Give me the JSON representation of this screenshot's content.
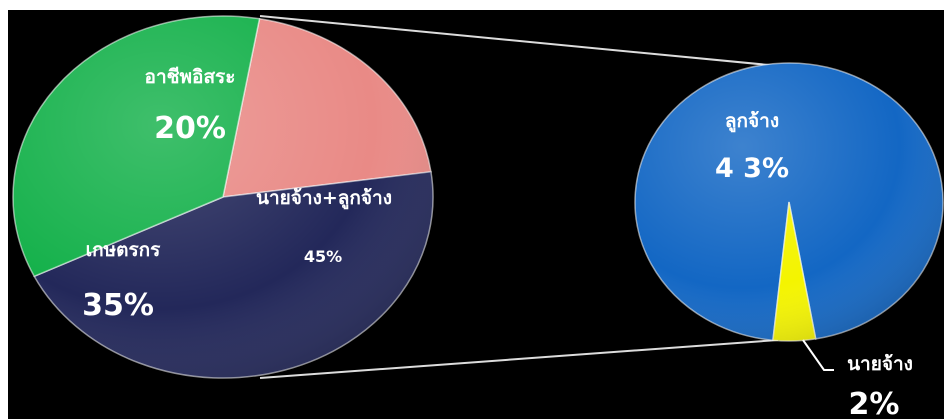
{
  "chart_data": [
    {
      "type": "pie",
      "slices": [
        {
          "label": "อาชีพอิสระ",
          "value": 20,
          "value_label": "20%",
          "color": "#e98a86"
        },
        {
          "label": "นายจ้าง+ลูกจ้าง",
          "value": 45,
          "value_label": "45%",
          "color": "#23285a"
        },
        {
          "label": "เกษตรกร",
          "value": 35,
          "value_label": "35%",
          "color": "#15b14b"
        }
      ]
    },
    {
      "type": "pie",
      "slices": [
        {
          "label": "ลูกจ้าง",
          "value": 43,
          "value_label": "4 3%",
          "color": "#1367c4"
        },
        {
          "label": "นายจ้าง",
          "value": 2,
          "value_label": "2%",
          "color": "#f4f400"
        }
      ]
    }
  ]
}
